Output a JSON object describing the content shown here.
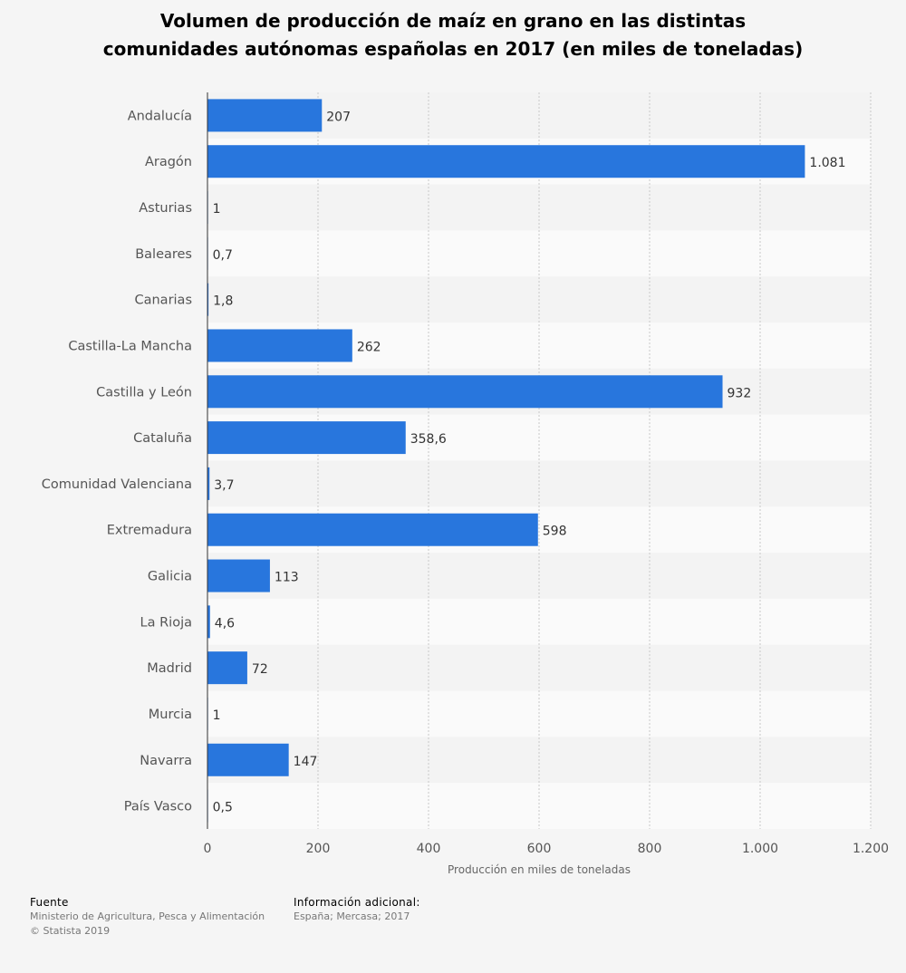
{
  "title_lines": [
    "Volumen de producción de maíz en grano en las distintas",
    "comunidades autónomas españolas en 2017 (en miles de toneladas)"
  ],
  "chart_data": {
    "type": "bar",
    "orientation": "horizontal",
    "title": "Volumen de producción de maíz en grano en las distintas comunidades autónomas españolas en 2017 (en miles de toneladas)",
    "xlabel": "Producción en miles de toneladas",
    "ylabel": "",
    "xlim": [
      0,
      1200
    ],
    "ticks": [
      0,
      200,
      400,
      600,
      800,
      1000,
      1200
    ],
    "tick_labels": [
      "0",
      "200",
      "400",
      "600",
      "800",
      "1.000",
      "1.200"
    ],
    "grid": true,
    "bar_color": "#2876dd",
    "categories": [
      "Andalucía",
      "Aragón",
      "Asturias",
      "Baleares",
      "Canarias",
      "Castilla-La Mancha",
      "Castilla y León",
      "Cataluña",
      "Comunidad Valenciana",
      "Extremadura",
      "Galicia",
      "La Rioja",
      "Madrid",
      "Murcia",
      "Navarra",
      "País Vasco"
    ],
    "values": [
      207,
      1081,
      1,
      0.7,
      1.8,
      262,
      932,
      358.6,
      3.7,
      598,
      113,
      4.6,
      72,
      1,
      147,
      0.5
    ],
    "value_labels": [
      "207",
      "1.081",
      "1",
      "0,7",
      "1,8",
      "262",
      "932",
      "358,6",
      "3,7",
      "598",
      "113",
      "4,6",
      "72",
      "1",
      "147",
      "0,5"
    ]
  },
  "footer": {
    "source_heading": "Fuente",
    "source_text": "Ministerio de Agricultura, Pesca y Alimentación",
    "copyright": "© Statista 2019",
    "info_heading": "Información adicional:",
    "info_text": "España; Mercasa; 2017"
  }
}
